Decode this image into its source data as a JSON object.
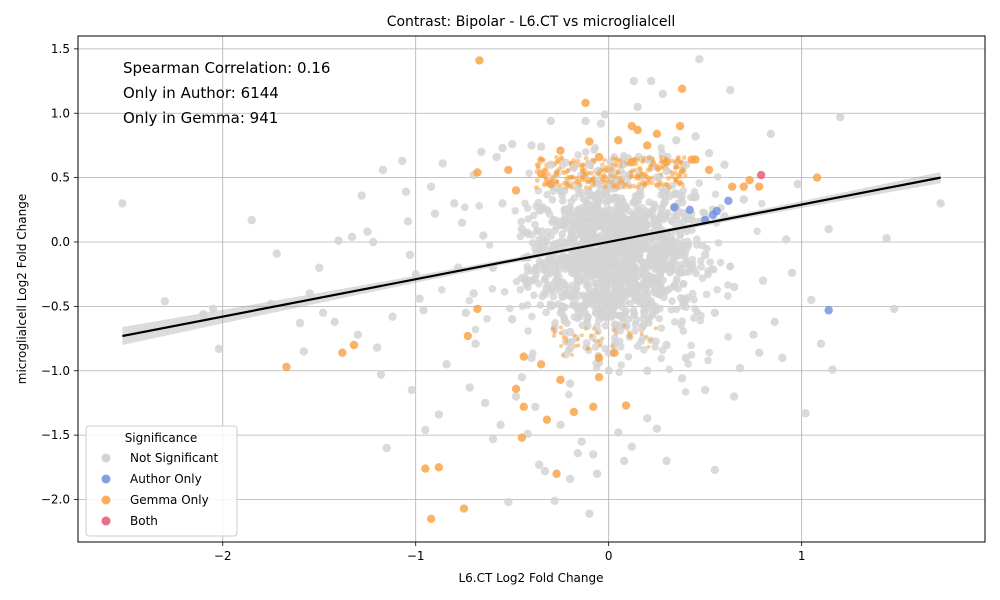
{
  "chart_data": {
    "type": "scatter",
    "title": "Contrast: Bipolar - L6.CT vs microglialcell",
    "xlabel": "L6.CT Log2 Fold Change",
    "ylabel": "microglialcell Log2 Fold Change",
    "xlim": [
      -2.75,
      1.95
    ],
    "ylim": [
      -2.33,
      1.6
    ],
    "x_ticks": [
      -2,
      -1,
      0,
      1
    ],
    "y_ticks": [
      -2.0,
      -1.5,
      -1.0,
      -0.5,
      0.0,
      0.5,
      1.0,
      1.5
    ],
    "x_tick_labels": [
      "−2",
      "−1",
      "0",
      "1"
    ],
    "y_tick_labels": [
      "−2.0",
      "−1.5",
      "−1.0",
      "−0.5",
      "0.0",
      "0.5",
      "1.0",
      "1.5"
    ],
    "grid": true,
    "annotations": [
      "Spearman Correlation: 0.16",
      "Only in Author: 6144",
      "Only in Gemma: 941"
    ],
    "legend": {
      "title": "Significance",
      "placement": "lower-left",
      "entries": [
        "Not Significant",
        "Author Only",
        "Gemma Only",
        "Both"
      ]
    },
    "regression": {
      "x": [
        -2.52,
        1.72
      ],
      "y": [
        -0.73,
        0.5
      ],
      "ci_halfwidth_ends": 0.07
    },
    "series": [
      {
        "name": "Not Significant",
        "color": "#d3d3d3",
        "points": [
          [
            -2.52,
            0.3
          ],
          [
            -2.3,
            -0.46
          ],
          [
            -2.1,
            -0.56
          ],
          [
            -2.05,
            -0.52
          ],
          [
            -2.02,
            -0.83
          ],
          [
            -1.85,
            0.17
          ],
          [
            -1.75,
            -0.48
          ],
          [
            -1.72,
            -0.09
          ],
          [
            -1.6,
            -0.63
          ],
          [
            -1.58,
            -0.85
          ],
          [
            -1.55,
            -0.4
          ],
          [
            -1.5,
            -0.2
          ],
          [
            -1.48,
            -0.55
          ],
          [
            -1.42,
            -0.62
          ],
          [
            -1.4,
            0.01
          ],
          [
            -1.33,
            0.04
          ],
          [
            -1.3,
            -0.72
          ],
          [
            -1.28,
            0.36
          ],
          [
            -1.25,
            0.08
          ],
          [
            -1.22,
            0.0
          ],
          [
            -1.2,
            -0.82
          ],
          [
            -1.18,
            -1.03
          ],
          [
            -1.17,
            0.56
          ],
          [
            -1.15,
            -1.6
          ],
          [
            -1.12,
            -0.58
          ],
          [
            -1.07,
            0.63
          ],
          [
            -1.05,
            0.39
          ],
          [
            -1.04,
            0.16
          ],
          [
            -1.03,
            -0.1
          ],
          [
            -1.02,
            -1.15
          ],
          [
            -1.0,
            -0.25
          ],
          [
            -0.98,
            -0.44
          ],
          [
            -0.96,
            -0.53
          ],
          [
            -0.95,
            -1.46
          ],
          [
            -0.92,
            0.43
          ],
          [
            -0.9,
            0.22
          ],
          [
            -0.88,
            -1.34
          ],
          [
            -0.86,
            0.61
          ],
          [
            -0.84,
            -0.95
          ],
          [
            -0.8,
            0.3
          ],
          [
            -0.78,
            -0.2
          ],
          [
            -0.76,
            0.15
          ],
          [
            -0.74,
            -0.55
          ],
          [
            -0.72,
            -1.13
          ],
          [
            -0.7,
            0.52
          ],
          [
            -0.69,
            -0.79
          ],
          [
            -0.66,
            0.7
          ],
          [
            -0.64,
            -1.25
          ],
          [
            -0.6,
            -1.53
          ],
          [
            -0.58,
            0.66
          ],
          [
            -0.56,
            -1.42
          ],
          [
            -0.55,
            0.73
          ],
          [
            -0.52,
            -2.02
          ],
          [
            -0.5,
            0.76
          ],
          [
            -0.48,
            -1.2
          ],
          [
            -0.45,
            -1.05
          ],
          [
            -0.42,
            -1.49
          ],
          [
            -0.4,
            0.75
          ],
          [
            -0.38,
            -1.28
          ],
          [
            -0.36,
            -1.73
          ],
          [
            -0.35,
            0.74
          ],
          [
            -0.33,
            -1.78
          ],
          [
            -0.3,
            0.94
          ],
          [
            -0.28,
            -2.01
          ],
          [
            -0.25,
            -1.42
          ],
          [
            -0.2,
            -1.84
          ],
          [
            -0.18,
            0.58
          ],
          [
            -0.16,
            -1.64
          ],
          [
            -0.14,
            -1.55
          ],
          [
            -0.12,
            0.94
          ],
          [
            -0.1,
            -2.11
          ],
          [
            -0.08,
            -1.65
          ],
          [
            -0.06,
            -1.8
          ],
          [
            -0.04,
            0.92
          ],
          [
            -0.02,
            0.99
          ],
          [
            0.05,
            -1.48
          ],
          [
            0.08,
            -1.7
          ],
          [
            0.12,
            -1.59
          ],
          [
            0.13,
            1.25
          ],
          [
            0.15,
            1.05
          ],
          [
            0.2,
            -1.37
          ],
          [
            0.22,
            1.25
          ],
          [
            0.25,
            -1.45
          ],
          [
            0.28,
            1.15
          ],
          [
            0.3,
            -1.7
          ],
          [
            0.35,
            0.79
          ],
          [
            0.38,
            -1.06
          ],
          [
            0.45,
            0.82
          ],
          [
            0.47,
            1.42
          ],
          [
            0.5,
            -1.15
          ],
          [
            0.52,
            0.69
          ],
          [
            0.55,
            -1.77
          ],
          [
            0.6,
            0.6
          ],
          [
            0.63,
            1.18
          ],
          [
            0.65,
            -1.2
          ],
          [
            0.68,
            -0.98
          ],
          [
            0.7,
            0.33
          ],
          [
            0.75,
            -0.72
          ],
          [
            0.78,
            -0.86
          ],
          [
            0.8,
            -0.3
          ],
          [
            0.84,
            0.84
          ],
          [
            0.86,
            -0.62
          ],
          [
            0.9,
            -0.9
          ],
          [
            0.92,
            0.02
          ],
          [
            0.95,
            -0.24
          ],
          [
            0.98,
            0.45
          ],
          [
            1.02,
            -1.33
          ],
          [
            1.05,
            -0.45
          ],
          [
            1.1,
            -0.79
          ],
          [
            1.14,
            0.1
          ],
          [
            1.16,
            -0.99
          ],
          [
            1.2,
            0.97
          ],
          [
            1.44,
            0.03
          ],
          [
            1.48,
            -0.52
          ],
          [
            1.72,
            0.3
          ],
          [
            -0.45,
            0.1
          ],
          [
            -0.4,
            -0.3
          ],
          [
            -0.35,
            0.25
          ],
          [
            -0.3,
            -0.5
          ],
          [
            -0.25,
            0.4
          ],
          [
            -0.2,
            -0.7
          ],
          [
            -0.15,
            0.2
          ],
          [
            -0.1,
            -0.2
          ],
          [
            -0.05,
            0.45
          ],
          [
            0.0,
            -0.4
          ],
          [
            0.05,
            0.3
          ],
          [
            0.1,
            -0.6
          ],
          [
            0.15,
            0.1
          ],
          [
            0.2,
            -0.3
          ],
          [
            0.25,
            0.5
          ],
          [
            0.3,
            -0.8
          ],
          [
            0.35,
            0.0
          ],
          [
            0.4,
            -0.45
          ],
          [
            0.45,
            0.35
          ],
          [
            0.5,
            -0.1
          ],
          [
            0.55,
            -0.55
          ],
          [
            0.6,
            0.2
          ],
          [
            0.65,
            -0.35
          ],
          [
            -0.5,
            -0.6
          ],
          [
            -0.55,
            0.3
          ],
          [
            -0.6,
            -0.2
          ],
          [
            -0.65,
            0.05
          ],
          [
            -0.7,
            -0.4
          ],
          [
            -0.3,
            0.6
          ],
          [
            -0.1,
            0.6
          ],
          [
            0.1,
            0.65
          ],
          [
            0.3,
            0.55
          ],
          [
            0.4,
            0.6
          ],
          [
            -0.4,
            -0.9
          ],
          [
            -0.2,
            -1.1
          ],
          [
            0.0,
            -1.0
          ],
          [
            0.2,
            -1.0
          ],
          [
            0.4,
            -0.9
          ]
        ]
      },
      {
        "name": "Author Only",
        "color": "#6e8fdf",
        "points": [
          [
            0.34,
            0.27
          ],
          [
            0.42,
            0.25
          ],
          [
            0.5,
            0.17
          ],
          [
            0.54,
            0.21
          ],
          [
            0.56,
            0.24
          ],
          [
            0.62,
            0.32
          ],
          [
            1.14,
            -0.53
          ]
        ]
      },
      {
        "name": "Gemma Only",
        "color": "#f9a040",
        "points": [
          [
            -0.67,
            1.41
          ],
          [
            -0.12,
            1.08
          ],
          [
            0.38,
            1.19
          ],
          [
            0.37,
            0.9
          ],
          [
            0.12,
            0.9
          ],
          [
            0.15,
            0.87
          ],
          [
            0.2,
            0.75
          ],
          [
            0.25,
            0.84
          ],
          [
            0.05,
            0.79
          ],
          [
            -0.1,
            0.78
          ],
          [
            0.43,
            0.64
          ],
          [
            0.45,
            0.64
          ],
          [
            0.52,
            0.56
          ],
          [
            0.64,
            0.43
          ],
          [
            0.7,
            0.43
          ],
          [
            0.73,
            0.48
          ],
          [
            0.78,
            0.43
          ],
          [
            1.08,
            0.5
          ],
          [
            -0.68,
            0.54
          ],
          [
            -0.52,
            0.56
          ],
          [
            -0.35,
            0.53
          ],
          [
            -0.25,
            0.71
          ],
          [
            -0.05,
            0.66
          ],
          [
            0.3,
            0.62
          ],
          [
            -0.48,
            0.4
          ],
          [
            -0.3,
            0.45
          ],
          [
            0.12,
            0.62
          ],
          [
            -1.67,
            -0.97
          ],
          [
            -1.38,
            -0.86
          ],
          [
            -1.32,
            -0.8
          ],
          [
            -0.68,
            -0.52
          ],
          [
            -0.73,
            -0.73
          ],
          [
            -0.44,
            -0.89
          ],
          [
            -0.48,
            -1.14
          ],
          [
            -0.44,
            -1.28
          ],
          [
            -0.45,
            -1.52
          ],
          [
            -0.32,
            -1.38
          ],
          [
            -0.27,
            -1.8
          ],
          [
            -0.95,
            -1.76
          ],
          [
            -0.88,
            -1.75
          ],
          [
            -0.92,
            -2.15
          ],
          [
            -0.75,
            -2.07
          ],
          [
            -0.18,
            -1.32
          ],
          [
            -0.08,
            -1.28
          ],
          [
            0.09,
            -1.27
          ],
          [
            -0.05,
            -1.05
          ],
          [
            -0.25,
            -1.07
          ],
          [
            -0.35,
            -0.95
          ],
          [
            0.03,
            -0.86
          ],
          [
            -0.05,
            -0.9
          ]
        ]
      },
      {
        "name": "Both",
        "color": "#e6556f",
        "points": [
          [
            0.79,
            0.52
          ]
        ]
      }
    ]
  }
}
